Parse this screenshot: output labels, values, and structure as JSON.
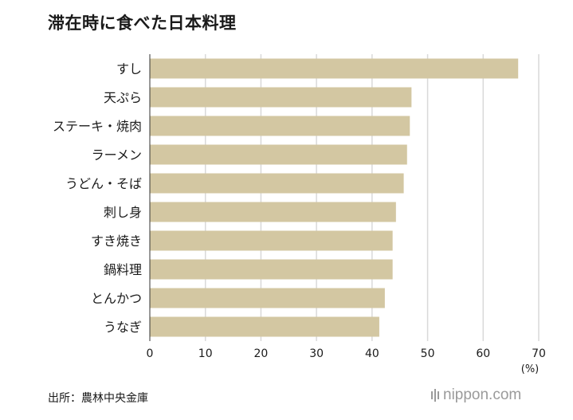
{
  "chart_data": {
    "type": "bar",
    "orientation": "horizontal",
    "title": "滞在時に食べた日本料理",
    "categories": [
      "すし",
      "天ぷら",
      "ステーキ・焼肉",
      "ラーメン",
      "うどん・そば",
      "刺し身",
      "すき焼き",
      "鍋料理",
      "とんかつ",
      "うなぎ"
    ],
    "values": [
      66.3,
      47.1,
      46.8,
      46.3,
      45.7,
      44.3,
      43.7,
      43.7,
      42.3,
      41.3
    ],
    "xlim": [
      0,
      70
    ],
    "xticks": [
      0,
      10,
      20,
      30,
      40,
      50,
      60,
      70
    ],
    "xunit": "(%)",
    "grid": true,
    "bar_color": "#d3c7a2"
  },
  "footer": {
    "source": "出所：農林中央金庫",
    "logo_text": "nippon.com"
  }
}
